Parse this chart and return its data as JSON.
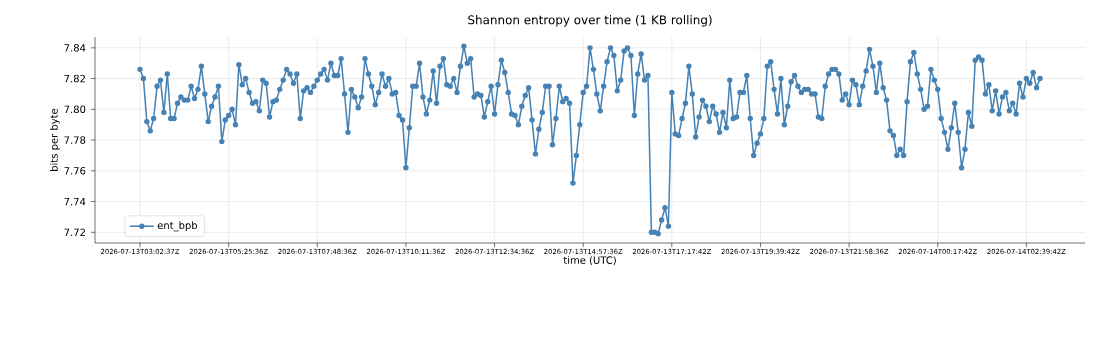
{
  "chart_data": {
    "type": "line",
    "title": "Shannon entropy over time (1 KB rolling)",
    "xlabel": "time (UTC)",
    "ylabel": "bits per byte",
    "categories": [
      "2026-07-13T03:02:37Z",
      null,
      null,
      null,
      null,
      null,
      null,
      null,
      null,
      null,
      null,
      null,
      null,
      null,
      null,
      null,
      null,
      null,
      null,
      null,
      null,
      null,
      null,
      null,
      null,
      null,
      "2026-07-13T05:25:36Z",
      null,
      null,
      null,
      null,
      null,
      null,
      null,
      null,
      null,
      null,
      null,
      null,
      null,
      null,
      null,
      null,
      null,
      null,
      null,
      null,
      null,
      null,
      null,
      null,
      null,
      "2026-07-13T07:48:36Z",
      null,
      null,
      null,
      null,
      null,
      null,
      null,
      null,
      null,
      null,
      null,
      null,
      null,
      null,
      null,
      null,
      null,
      null,
      null,
      null,
      null,
      null,
      null,
      null,
      null,
      "2026-07-13T10:11:36Z",
      null,
      null,
      null,
      null,
      null,
      null,
      null,
      null,
      null,
      null,
      null,
      null,
      null,
      null,
      null,
      null,
      null,
      null,
      null,
      null,
      null,
      null,
      null,
      null,
      null,
      "2026-07-13T12:34:36Z",
      null,
      null,
      null,
      null,
      null,
      null,
      null,
      null,
      null,
      null,
      null,
      null,
      null,
      null,
      null,
      null,
      null,
      null,
      null,
      null,
      null,
      null,
      null,
      null,
      null,
      "2026-07-13T14:57:36Z",
      null,
      null,
      null,
      null,
      null,
      null,
      null,
      null,
      null,
      null,
      null,
      null,
      null,
      null,
      null,
      null,
      null,
      null,
      null,
      null,
      null,
      null,
      null,
      null,
      null,
      "2026-07-13T17:17:42Z",
      null,
      null,
      null,
      null,
      null,
      null,
      null,
      null,
      null,
      null,
      null,
      null,
      null,
      null,
      null,
      null,
      null,
      null,
      null,
      null,
      null,
      null,
      null,
      null,
      null,
      "2026-07-13T19:39:42Z",
      null,
      null,
      null,
      null,
      null,
      null,
      null,
      null,
      null,
      null,
      null,
      null,
      null,
      null,
      null,
      null,
      null,
      null,
      null,
      null,
      null,
      null,
      null,
      null,
      null,
      "2026-07-13T21:58:36Z",
      null,
      null,
      null,
      null,
      null,
      null,
      null,
      null,
      null,
      null,
      null,
      null,
      null,
      null,
      null,
      null,
      null,
      null,
      null,
      null,
      null,
      null,
      null,
      null,
      null,
      "2026-07-14T00:17:42Z",
      null,
      null,
      null,
      null,
      null,
      null,
      null,
      null,
      null,
      null,
      null,
      null,
      null,
      null,
      null,
      null,
      null,
      null,
      null,
      null,
      null,
      null,
      null,
      null,
      null,
      "2026-07-14T02:39:42Z",
      null,
      null,
      null,
      null
    ],
    "series": [
      {
        "name": "ent_bpb",
        "color": "#4682b4",
        "values": [
          7.826,
          7.82,
          7.792,
          7.786,
          7.794,
          7.815,
          7.819,
          7.798,
          7.823,
          7.794,
          7.794,
          7.804,
          7.808,
          7.806,
          7.806,
          7.815,
          7.807,
          7.813,
          7.828,
          7.81,
          7.792,
          7.802,
          7.808,
          7.815,
          7.779,
          7.793,
          7.796,
          7.8,
          7.79,
          7.829,
          7.816,
          7.82,
          7.811,
          7.804,
          7.805,
          7.799,
          7.819,
          7.817,
          7.795,
          7.805,
          7.806,
          7.813,
          7.819,
          7.826,
          7.823,
          7.817,
          7.823,
          7.794,
          7.812,
          7.814,
          7.811,
          7.815,
          7.819,
          7.823,
          7.826,
          7.819,
          7.83,
          7.822,
          7.822,
          7.833,
          7.81,
          7.785,
          7.813,
          7.808,
          7.801,
          7.808,
          7.833,
          7.823,
          7.815,
          7.803,
          7.811,
          7.823,
          7.815,
          7.82,
          7.81,
          7.811,
          7.796,
          7.793,
          7.762,
          7.788,
          7.815,
          7.815,
          7.83,
          7.808,
          7.797,
          7.806,
          7.825,
          7.804,
          7.828,
          7.833,
          7.816,
          7.815,
          7.82,
          7.811,
          7.828,
          7.841,
          7.83,
          7.833,
          7.808,
          7.81,
          7.809,
          7.795,
          7.805,
          7.815,
          7.797,
          7.816,
          7.832,
          7.824,
          7.811,
          7.797,
          7.796,
          7.79,
          7.802,
          7.809,
          7.814,
          7.793,
          7.771,
          7.787,
          7.798,
          7.815,
          7.815,
          7.777,
          7.794,
          7.815,
          7.805,
          7.807,
          7.804,
          7.752,
          7.77,
          7.79,
          7.811,
          7.815,
          7.84,
          7.826,
          7.81,
          7.799,
          7.815,
          7.831,
          7.84,
          7.835,
          7.812,
          7.819,
          7.838,
          7.84,
          7.835,
          7.796,
          7.823,
          7.836,
          7.819,
          7.822,
          7.72,
          7.72,
          7.719,
          7.728,
          7.736,
          7.724,
          7.811,
          7.784,
          7.783,
          7.794,
          7.804,
          7.828,
          7.81,
          7.782,
          7.795,
          7.806,
          7.802,
          7.792,
          7.802,
          7.797,
          7.785,
          7.798,
          7.788,
          7.819,
          7.794,
          7.795,
          7.811,
          7.811,
          7.822,
          7.794,
          7.77,
          7.778,
          7.784,
          7.794,
          7.828,
          7.831,
          7.813,
          7.797,
          7.82,
          7.79,
          7.802,
          7.818,
          7.822,
          7.815,
          7.811,
          7.813,
          7.813,
          7.81,
          7.81,
          7.795,
          7.794,
          7.815,
          7.823,
          7.826,
          7.826,
          7.823,
          7.806,
          7.81,
          7.803,
          7.819,
          7.816,
          7.803,
          7.815,
          7.825,
          7.839,
          7.828,
          7.811,
          7.83,
          7.814,
          7.806,
          7.786,
          7.783,
          7.77,
          7.774,
          7.77,
          7.805,
          7.831,
          7.837,
          7.823,
          7.813,
          7.8,
          7.802,
          7.826,
          7.819,
          7.813,
          7.794,
          7.785,
          7.774,
          7.788,
          7.804,
          7.785,
          7.762,
          7.774,
          7.798,
          7.789,
          7.832,
          7.834,
          7.832,
          7.81,
          7.816,
          7.799,
          7.812,
          7.797,
          7.808,
          7.811,
          7.799,
          7.804,
          7.797,
          7.817,
          7.808,
          7.82,
          7.817,
          7.824,
          7.814,
          7.82
        ]
      }
    ],
    "ylim": [
      7.713,
      7.847
    ],
    "yticks": [
      {
        "value": 7.72,
        "label": "7.72"
      },
      {
        "value": 7.74,
        "label": "7.74"
      },
      {
        "value": 7.76,
        "label": "7.76"
      },
      {
        "value": 7.78,
        "label": "7.78"
      },
      {
        "value": 7.8,
        "label": "7.80"
      },
      {
        "value": 7.82,
        "label": "7.82"
      },
      {
        "value": 7.84,
        "label": "7.84"
      }
    ],
    "grid": true,
    "legend": "bottom left",
    "marker": "circle",
    "line_style": "solid"
  }
}
